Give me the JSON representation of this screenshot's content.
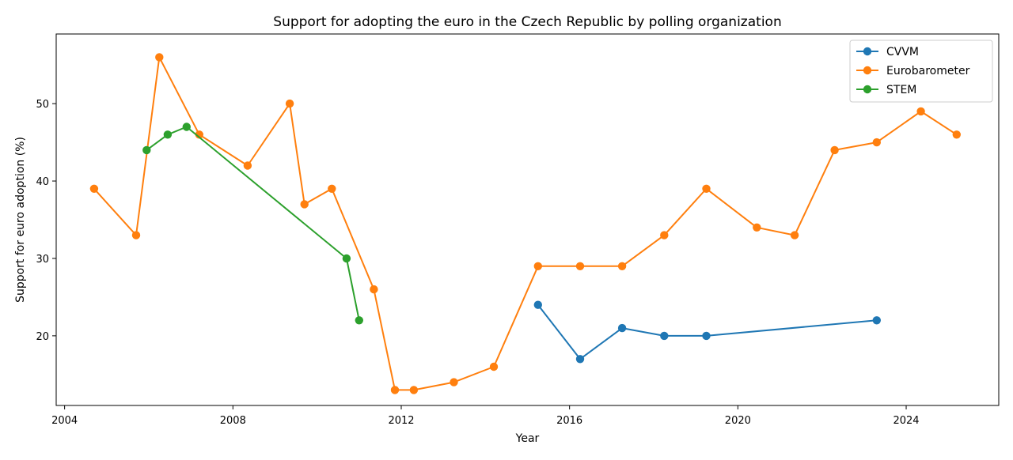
{
  "chart_data": {
    "type": "line",
    "title": "Support for adopting the euro in the Czech Republic by polling organization",
    "xlabel": "Year",
    "ylabel": "Support for euro adoption (%)",
    "xlim": [
      2003.8,
      2026.2
    ],
    "ylim": [
      11,
      59
    ],
    "x_ticks": [
      2004,
      2008,
      2012,
      2016,
      2020,
      2024
    ],
    "y_ticks": [
      20,
      30,
      40,
      50
    ],
    "grid": false,
    "legend_position": "top-right",
    "series": [
      {
        "name": "CVVM",
        "color": "#1f77b4",
        "points": [
          [
            2015.25,
            24
          ],
          [
            2016.25,
            17
          ],
          [
            2017.25,
            21
          ],
          [
            2018.25,
            20
          ],
          [
            2019.25,
            20
          ],
          [
            2023.3,
            22
          ]
        ]
      },
      {
        "name": "Eurobarometer",
        "color": "#ff7f0e",
        "points": [
          [
            2004.7,
            39
          ],
          [
            2005.7,
            33
          ],
          [
            2006.25,
            56
          ],
          [
            2007.2,
            46
          ],
          [
            2008.35,
            42
          ],
          [
            2009.35,
            50
          ],
          [
            2009.7,
            37
          ],
          [
            2010.35,
            39
          ],
          [
            2011.35,
            26
          ],
          [
            2011.85,
            13
          ],
          [
            2012.3,
            13
          ],
          [
            2013.25,
            14
          ],
          [
            2014.2,
            16
          ],
          [
            2015.25,
            29
          ],
          [
            2016.25,
            29
          ],
          [
            2017.25,
            29
          ],
          [
            2018.25,
            33
          ],
          [
            2019.25,
            39
          ],
          [
            2020.45,
            34
          ],
          [
            2021.35,
            33
          ],
          [
            2022.3,
            44
          ],
          [
            2023.3,
            45
          ],
          [
            2024.35,
            49
          ],
          [
            2025.2,
            46
          ]
        ]
      },
      {
        "name": "STEM",
        "color": "#2ca02c",
        "points": [
          [
            2005.95,
            44
          ],
          [
            2006.45,
            46
          ],
          [
            2006.9,
            47
          ],
          [
            2010.7,
            30
          ],
          [
            2011.0,
            22
          ]
        ]
      }
    ]
  }
}
